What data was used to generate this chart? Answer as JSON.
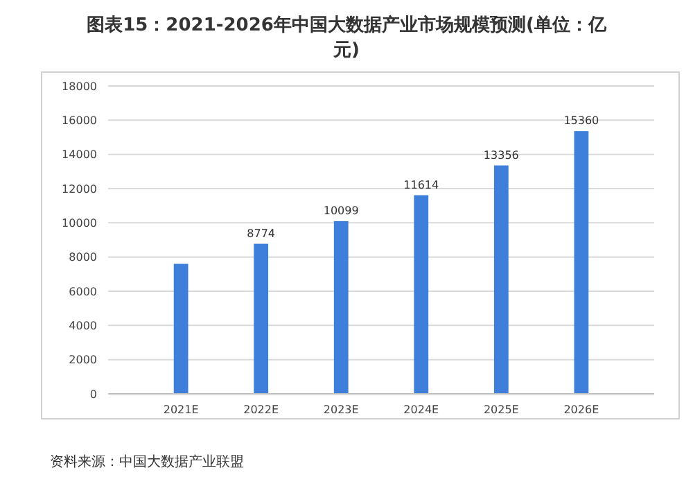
{
  "chart_data": {
    "type": "bar",
    "title": "图表15：2021-2026年中国大数据产业市场规模预测(单位：亿元)",
    "categories": [
      "2021E",
      "2022E",
      "2023E",
      "2024E",
      "2025E",
      "2026E"
    ],
    "values": [
      7600,
      8774,
      10099,
      11614,
      13356,
      15360
    ],
    "value_labels": [
      null,
      "8774",
      "10099",
      "11614",
      "13356",
      "15360"
    ],
    "color": "#3d7fdb",
    "ylim": [
      0,
      18000
    ],
    "yticks": [
      0,
      2000,
      4000,
      6000,
      8000,
      10000,
      12000,
      14000,
      16000,
      18000
    ],
    "grid": "y",
    "annotations": [
      "资料来源：中国大数据产业联盟"
    ]
  }
}
